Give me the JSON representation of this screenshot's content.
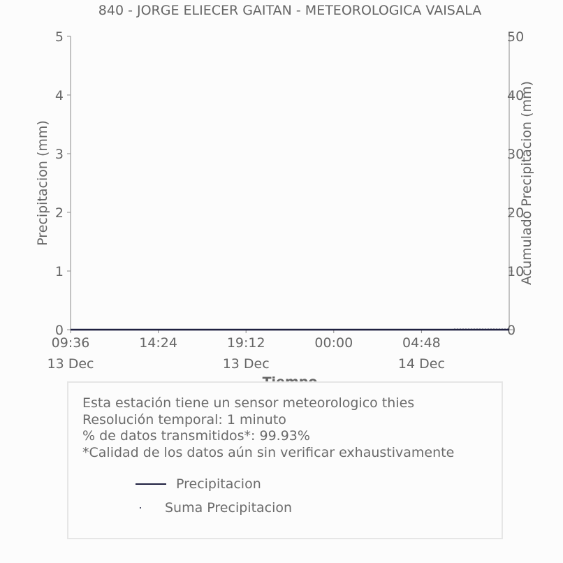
{
  "chart_data": {
    "type": "line",
    "title": "840 - JORGE ELIECER GAITAN - METEOROLOGICA VAISALA",
    "xlabel": "Tiempo",
    "ylabel": "Precipitacion (mm)",
    "y2label": "Acumulado Precipitacion (mm)",
    "ylim": [
      0,
      5
    ],
    "y2lim": [
      0,
      50
    ],
    "yticks": [
      "0",
      "1",
      "2",
      "3",
      "4",
      "5"
    ],
    "y2ticks": [
      "0",
      "10",
      "20",
      "30",
      "40",
      "50"
    ],
    "xlim": [
      "2023-12-13 09:36",
      "2023-12-14 09:36"
    ],
    "xticks": [
      {
        "time": "09:36",
        "date": "13 Dec"
      },
      {
        "time": "14:24",
        "date": ""
      },
      {
        "time": "19:12",
        "date": "13 Dec"
      },
      {
        "time": "00:00",
        "date": ""
      },
      {
        "time": "04:48",
        "date": "14 Dec"
      }
    ],
    "series": [
      {
        "name": "Precipitacion",
        "axis": "left",
        "color": "#1f2040",
        "x": [
          "2023-12-13 09:36",
          "2023-12-14 09:36"
        ],
        "values": [
          0,
          0
        ]
      },
      {
        "name": "Suma Precipitacion",
        "axis": "right",
        "color": "#1f2040",
        "style": "dotted",
        "x": [
          "2023-12-14 06:36",
          "2023-12-14 09:36"
        ],
        "values": [
          0,
          0
        ]
      }
    ],
    "grid": false,
    "legend_position": "bottom"
  },
  "info": {
    "lines": [
      "Esta estación tiene un sensor meteorologico thies",
      "Resolución temporal: 1 minuto",
      "% de datos transmitidos*: 99.93%",
      "*Calidad de los datos aún sin verificar exhaustivamente"
    ]
  },
  "colors": {
    "axis": "#8a8a8a",
    "text": "#666666",
    "series": "#1f2040"
  }
}
